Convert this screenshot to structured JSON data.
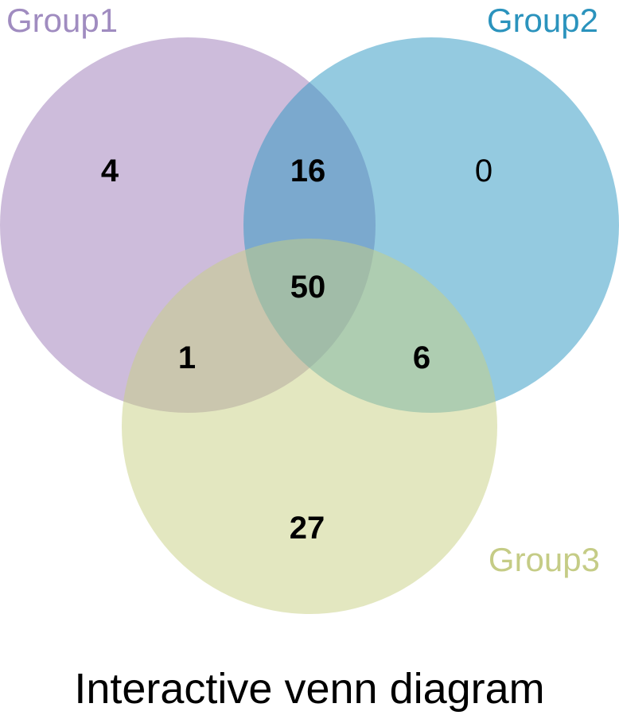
{
  "sets": [
    {
      "name": "Group1",
      "color": "#9b79b8",
      "label_color": "#a08cc0"
    },
    {
      "name": "Group2",
      "color": "#2a96c2",
      "label_color": "#2b93bd"
    },
    {
      "name": "Group3",
      "color": "#c8cf82",
      "label_color": "#c5cc86"
    }
  ],
  "regions": {
    "only_group1": "4",
    "group1_group2": "16",
    "only_group2": "0",
    "all_three": "50",
    "group1_group3": "1",
    "group2_group3": "6",
    "only_group3": "27"
  },
  "caption": "Interactive venn diagram"
}
